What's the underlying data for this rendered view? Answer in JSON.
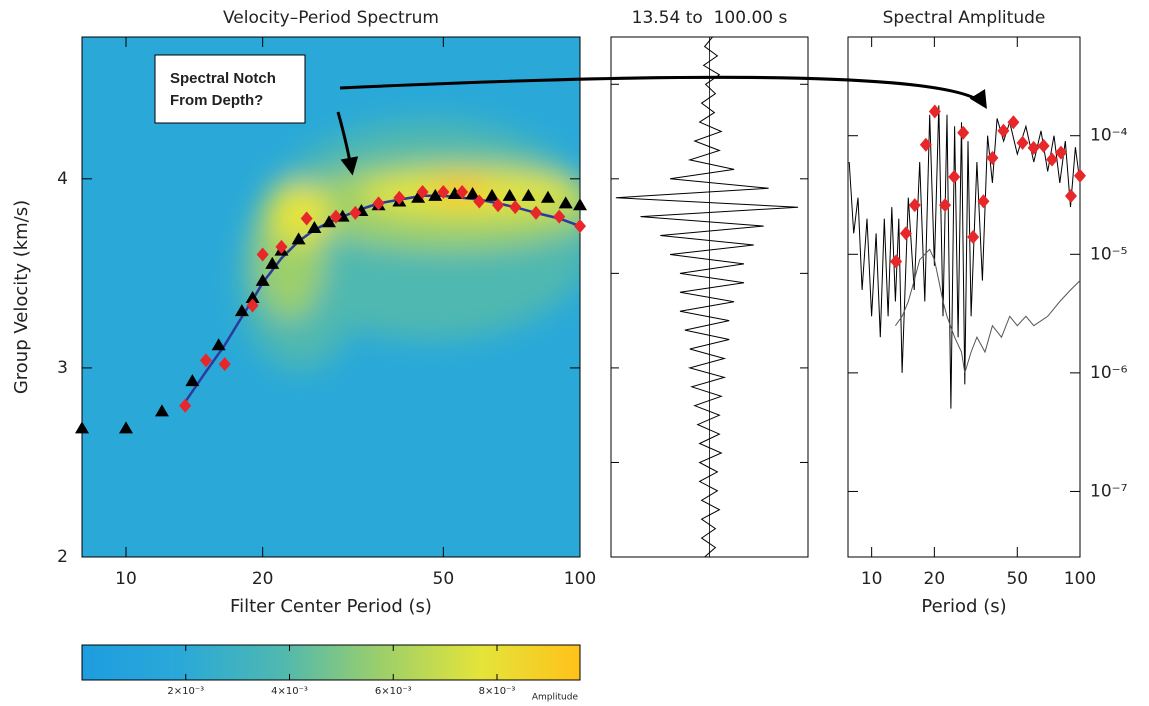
{
  "chart_data": [
    {
      "type": "scatter",
      "title": "Velocity–Period Spectrum",
      "xlabel": "Filter Center Period (s)",
      "ylabel": "Group Velocity (km/s)",
      "xlim": [
        8,
        100
      ],
      "xlog": true,
      "xticks": [
        10,
        20,
        50,
        100
      ],
      "ylim": [
        2,
        4.75
      ],
      "yticks": [
        2,
        3,
        4
      ],
      "annotation": [
        "Spectral Notch",
        "From Depth?"
      ],
      "series": [
        {
          "marker": "line",
          "color": "#2b3a9e",
          "x": [
            13.5,
            15,
            16.5,
            18,
            19,
            20,
            22,
            24,
            26,
            28,
            30,
            33,
            36,
            40,
            45,
            50,
            55,
            60,
            66,
            72,
            80,
            90,
            100
          ],
          "values": [
            2.82,
            2.98,
            3.12,
            3.27,
            3.36,
            3.45,
            3.58,
            3.67,
            3.73,
            3.77,
            3.8,
            3.84,
            3.87,
            3.89,
            3.91,
            3.91,
            3.9,
            3.89,
            3.87,
            3.85,
            3.82,
            3.79,
            3.75
          ]
        },
        {
          "marker": "triangle",
          "color": "#000000",
          "x": [
            8,
            10,
            12,
            14,
            16,
            18,
            19,
            20,
            21,
            22,
            24,
            26,
            28,
            30,
            33,
            36,
            40,
            44,
            48,
            53,
            58,
            64,
            70,
            77,
            85,
            93,
            100
          ],
          "values": [
            2.68,
            2.68,
            2.77,
            2.93,
            3.12,
            3.3,
            3.37,
            3.46,
            3.55,
            3.62,
            3.68,
            3.74,
            3.77,
            3.8,
            3.83,
            3.86,
            3.88,
            3.9,
            3.91,
            3.92,
            3.92,
            3.91,
            3.91,
            3.91,
            3.9,
            3.87,
            3.86
          ]
        },
        {
          "marker": "diamond",
          "color": "#e8272a",
          "x": [
            13.5,
            15,
            16.5,
            19,
            20,
            22,
            25,
            29,
            32,
            36,
            40,
            45,
            50,
            55,
            60,
            66,
            72,
            80,
            90,
            100
          ],
          "values": [
            2.8,
            3.04,
            3.02,
            3.33,
            3.6,
            3.64,
            3.79,
            3.8,
            3.82,
            3.87,
            3.9,
            3.93,
            3.93,
            3.93,
            3.88,
            3.86,
            3.85,
            3.82,
            3.8,
            3.75
          ]
        }
      ]
    },
    {
      "type": "trace",
      "title": "13.54 to  100.00 s",
      "xlim": [
        -1,
        1
      ],
      "ylim": [
        2,
        4.75
      ],
      "yticks": [
        2,
        2.5,
        3,
        3.5,
        4,
        4.5
      ],
      "series": [
        {
          "marker": "line",
          "color": "#000000",
          "x": [
            4.75,
            4.7,
            4.65,
            4.6,
            4.55,
            4.5,
            4.45,
            4.4,
            4.35,
            4.3,
            4.25,
            4.2,
            4.15,
            4.1,
            4.05,
            4.0,
            3.95,
            3.9,
            3.85,
            3.8,
            3.75,
            3.7,
            3.65,
            3.6,
            3.55,
            3.5,
            3.45,
            3.4,
            3.35,
            3.3,
            3.25,
            3.2,
            3.15,
            3.1,
            3.05,
            3.0,
            2.95,
            2.9,
            2.85,
            2.8,
            2.75,
            2.7,
            2.65,
            2.6,
            2.55,
            2.5,
            2.45,
            2.4,
            2.35,
            2.3,
            2.25,
            2.2,
            2.15,
            2.1,
            2.05,
            2.0
          ],
          "values": [
            0.03,
            -0.05,
            0.08,
            -0.06,
            0.1,
            -0.04,
            0.06,
            -0.08,
            0.05,
            -0.1,
            0.12,
            -0.15,
            0.1,
            -0.2,
            0.25,
            -0.4,
            0.6,
            -0.95,
            0.9,
            -0.7,
            0.55,
            -0.5,
            0.45,
            -0.4,
            0.35,
            -0.3,
            0.35,
            -0.3,
            0.25,
            -0.3,
            0.2,
            -0.25,
            0.2,
            -0.2,
            0.15,
            -0.2,
            0.15,
            -0.18,
            0.12,
            -0.15,
            0.1,
            -0.12,
            0.1,
            -0.1,
            0.12,
            -0.1,
            0.08,
            -0.1,
            0.08,
            -0.08,
            0.1,
            -0.08,
            0.06,
            -0.08,
            0.06,
            -0.05
          ]
        }
      ]
    },
    {
      "type": "line",
      "title": "Spectral Amplitude",
      "xlabel": "Period (s)",
      "xlim": [
        7.7,
        100
      ],
      "xlog": true,
      "xticks": [
        10,
        20,
        50,
        100
      ],
      "ylim": [
        2.8e-08,
        0.00068
      ],
      "ylog": true,
      "yticks": [
        {
          "value": 1e-07,
          "label": "10⁻⁷"
        },
        {
          "value": 1e-06,
          "label": "10⁻⁶"
        },
        {
          "value": 1e-05,
          "label": "10⁻⁵"
        },
        {
          "value": 0.0001,
          "label": "10⁻⁴"
        }
      ],
      "series": [
        {
          "marker": "line",
          "color": "#000000",
          "x": [
            7.8,
            8.2,
            8.6,
            9,
            9.5,
            10,
            10.5,
            11,
            11.5,
            12,
            12.5,
            13,
            13.5,
            14,
            15,
            16,
            17,
            18,
            19,
            20,
            21,
            22,
            23,
            24,
            25,
            26,
            27,
            28,
            29,
            30,
            32,
            34,
            36,
            38,
            40,
            43,
            46,
            50,
            55,
            60,
            65,
            70,
            75,
            80,
            85,
            90,
            95,
            100
          ],
          "values": [
            6e-05,
            1.5e-05,
            3e-05,
            5e-06,
            2e-05,
            3e-06,
            1.5e-05,
            2e-06,
            2e-05,
            3e-06,
            2.5e-05,
            4e-06,
            2e-05,
            1e-06,
            3e-05,
            5e-06,
            6e-05,
            4e-06,
            0.00015,
            8e-06,
            0.00018,
            3e-06,
            0.00015,
            5e-07,
            0.00012,
            2e-06,
            0.00013,
            8e-07,
            9e-05,
            3e-06,
            6e-05,
            6e-06,
            0.0001,
            4e-05,
            0.00014,
            9e-05,
            0.00013,
            7e-05,
            0.00012,
            6e-05,
            0.00011,
            5e-05,
            0.0001,
            4e-05,
            9e-05,
            2.5e-05,
            8e-05,
            4e-05
          ]
        },
        {
          "marker": "line",
          "color": "#555555",
          "x": [
            13,
            14,
            15,
            16,
            17,
            18,
            19,
            20,
            21,
            22,
            23,
            25,
            27,
            28,
            30,
            32,
            35,
            38,
            42,
            46,
            50,
            55,
            60,
            70,
            80,
            90,
            100
          ],
          "values": [
            2.5e-06,
            3e-06,
            4e-06,
            6e-06,
            9e-06,
            1e-05,
            1.1e-05,
            9e-06,
            6e-06,
            4e-06,
            3e-06,
            2e-06,
            1.5e-06,
            1e-06,
            1.5e-06,
            2e-06,
            1.5e-06,
            2.5e-06,
            2e-06,
            3e-06,
            2.5e-06,
            3e-06,
            2.5e-06,
            3e-06,
            4e-06,
            5e-06,
            6e-06
          ]
        },
        {
          "marker": "diamond",
          "color": "#e8272a",
          "x": [
            13.1,
            14.6,
            16.1,
            18.2,
            20.1,
            22.5,
            24.9,
            27.5,
            30.7,
            34.4,
            38,
            42.9,
            47.9,
            53,
            59.9,
            66.9,
            73.4,
            81,
            90.5,
            100
          ],
          "values": [
            8.7e-06,
            1.5e-05,
            2.6e-05,
            8.4e-05,
            0.00016,
            2.6e-05,
            4.5e-05,
            0.000106,
            1.4e-05,
            2.8e-05,
            6.5e-05,
            0.00011,
            0.00013,
            8.7e-05,
            7.9e-05,
            8.2e-05,
            6.3e-05,
            7.2e-05,
            3.1e-05,
            4.6e-05
          ]
        }
      ]
    },
    {
      "type": "colorbar",
      "label": "Amplitude",
      "xlim": [
        0,
        0.0096
      ],
      "colors": [
        "#1e9de0",
        "#2aa9d8",
        "#4fb8b0",
        "#9ccf6a",
        "#e4e43a",
        "#ffc21a"
      ],
      "xticks": [
        {
          "value": 0.002,
          "label": "2×10⁻³"
        },
        {
          "value": 0.004,
          "label": "4×10⁻³"
        },
        {
          "value": 0.006,
          "label": "6×10⁻³"
        },
        {
          "value": 0.008,
          "label": "8×10⁻³"
        }
      ]
    }
  ]
}
